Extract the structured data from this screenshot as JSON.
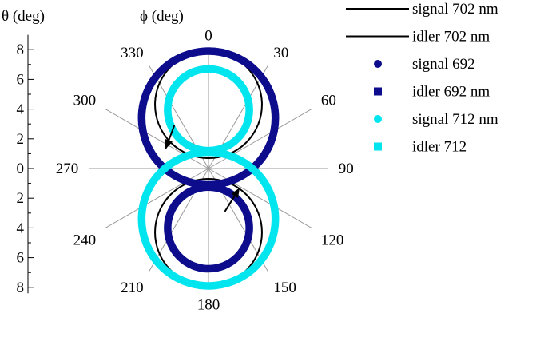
{
  "chart_data": {
    "type": "scatter",
    "subtype": "polar-rings",
    "theta_axis_label": "θ (deg)",
    "phi_axis_label": "ϕ (deg)",
    "theta_range": [
      -8,
      8
    ],
    "theta_ticks": [
      "8",
      "6",
      "4",
      "2",
      "0",
      "2",
      "4",
      "6",
      "8"
    ],
    "theta_tick_values": [
      8,
      6,
      4,
      2,
      0,
      -2,
      -4,
      -6,
      -8
    ],
    "phi_spokes": [
      0,
      30,
      60,
      90,
      120,
      150,
      180,
      210,
      240,
      270,
      300,
      330
    ],
    "phi_labels": [
      "0",
      "30",
      "60",
      "90",
      "120",
      "150",
      "180",
      "210",
      "240",
      "270",
      "300",
      "330"
    ],
    "legend_position": "top-right",
    "series": [
      {
        "name": "signal 702 nm",
        "marker": "line",
        "color": "#000000",
        "center_y": 4.3,
        "radius": 3.6
      },
      {
        "name": "idler 702 nm",
        "marker": "line",
        "color": "#000000",
        "center_y": -4.3,
        "radius": 3.6
      },
      {
        "name": "signal 692",
        "marker": "circle",
        "color": "#0c0c8c",
        "center_y": 3.4,
        "radius": 4.5
      },
      {
        "name": "idler 692 nm",
        "marker": "square",
        "color": "#0c0c8c",
        "center_y": -4.0,
        "radius": 2.75
      },
      {
        "name": "signal 712 nm",
        "marker": "circle",
        "color": "#00e5ee",
        "center_y": 3.95,
        "radius": 2.75
      },
      {
        "name": "idler 712",
        "marker": "square",
        "color": "#00e5ee",
        "center_y": -3.4,
        "radius": 4.5
      }
    ],
    "annotations": [
      {
        "type": "arrow",
        "from": [
          -2.3,
          2.9
        ],
        "to": [
          -2.9,
          1.3
        ]
      },
      {
        "type": "arrow",
        "from": [
          1.1,
          -2.9
        ],
        "to": [
          2.1,
          -1.3
        ]
      }
    ]
  }
}
